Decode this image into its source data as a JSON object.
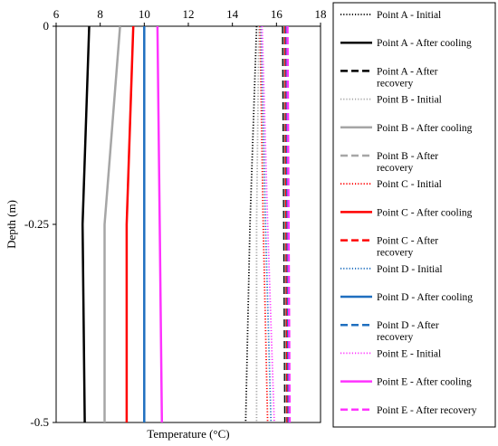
{
  "chart_data": {
    "type": "line",
    "xlabel": "Temperature (°C)",
    "ylabel": "Depth (m)",
    "xlim": [
      6,
      18
    ],
    "ylim": [
      -0.5,
      0
    ],
    "x_ticks": [
      "6",
      "8",
      "10",
      "12",
      "14",
      "16",
      "18"
    ],
    "y_ticks": [
      "0",
      "-0.25",
      "-0.5"
    ],
    "x_axis_position": "top",
    "grid": false,
    "legend_position": "right",
    "depth": [
      0,
      -0.25,
      -0.5
    ],
    "colors": {
      "A": "#000000",
      "B": "#a6a6a6",
      "C": "#ff0000",
      "D": "#1f6fbf",
      "E": "#ff33ff"
    },
    "series": [
      {
        "name": "Point A - Initial",
        "point": "A",
        "style": "dotted",
        "x": [
          15.1,
          14.8,
          14.6
        ]
      },
      {
        "name": "Point A - After cooling",
        "point": "A",
        "style": "solid",
        "x": [
          7.5,
          7.2,
          7.3
        ]
      },
      {
        "name": "Point A - After recovery",
        "point": "A",
        "style": "dashed",
        "x": [
          16.3,
          16.35,
          16.4
        ]
      },
      {
        "name": "Point B - Initial",
        "point": "B",
        "style": "dotted",
        "x": [
          15.2,
          15.1,
          15.1
        ]
      },
      {
        "name": "Point B - After cooling",
        "point": "B",
        "style": "solid",
        "x": [
          8.9,
          8.2,
          8.2
        ]
      },
      {
        "name": "Point B - After recovery",
        "point": "B",
        "style": "dashed",
        "x": [
          16.35,
          16.4,
          16.45
        ]
      },
      {
        "name": "Point C - Initial",
        "point": "C",
        "style": "dotted",
        "x": [
          15.25,
          15.4,
          15.6
        ]
      },
      {
        "name": "Point C - After cooling",
        "point": "C",
        "style": "solid",
        "x": [
          9.5,
          9.2,
          9.2
        ]
      },
      {
        "name": "Point C - After recovery",
        "point": "C",
        "style": "dashed",
        "x": [
          16.4,
          16.45,
          16.5
        ]
      },
      {
        "name": "Point D - Initial",
        "point": "D",
        "style": "dotted",
        "x": [
          15.3,
          15.5,
          15.75
        ]
      },
      {
        "name": "Point D - After cooling",
        "point": "D",
        "style": "solid",
        "x": [
          10,
          10,
          10
        ]
      },
      {
        "name": "Point D - After recovery",
        "point": "D",
        "style": "dashed",
        "x": [
          16.45,
          16.5,
          16.55
        ]
      },
      {
        "name": "Point E - Initial",
        "point": "E",
        "style": "dotted",
        "x": [
          15.35,
          15.6,
          15.9
        ]
      },
      {
        "name": "Point E - After cooling",
        "point": "E",
        "style": "solid",
        "x": [
          10.6,
          10.7,
          10.8
        ]
      },
      {
        "name": "Point E - After recovery",
        "point": "E",
        "style": "dashed",
        "x": [
          16.5,
          16.55,
          16.6
        ]
      }
    ]
  }
}
